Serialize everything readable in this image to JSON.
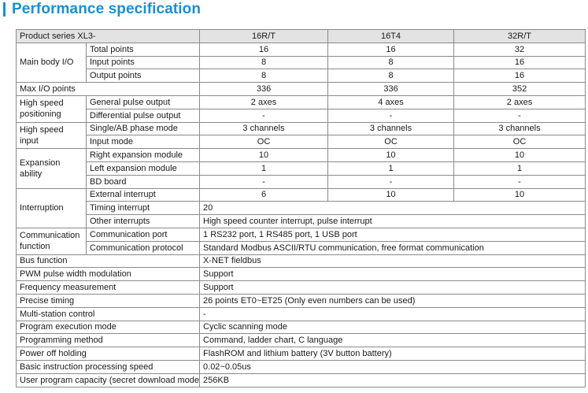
{
  "title": "Performance specification",
  "header": {
    "label": "Product series XL3-",
    "models": [
      "16R/T",
      "16T4",
      "32R/T"
    ]
  },
  "rows": {
    "main_io": {
      "group": "Main body I/O",
      "total": {
        "label": "Total points",
        "v": [
          "16",
          "16",
          "32"
        ]
      },
      "input": {
        "label": "Input points",
        "v": [
          "8",
          "8",
          "16"
        ]
      },
      "output": {
        "label": "Output points",
        "v": [
          "8",
          "8",
          "16"
        ]
      }
    },
    "max_io": {
      "label": "Max I/O points",
      "v": [
        "336",
        "336",
        "352"
      ]
    },
    "hs_pos": {
      "group": "High speed positioning",
      "general": {
        "label": "General pulse output",
        "v": [
          "2 axes",
          "4 axes",
          "2 axes"
        ]
      },
      "diff": {
        "label": "Differential pulse output",
        "v": [
          "-",
          "-",
          "-"
        ]
      }
    },
    "hs_input": {
      "group": "High speed input",
      "phase": {
        "label": "Single/AB phase mode",
        "v": [
          "3 channels",
          "3 channels",
          "3 channels"
        ]
      },
      "mode": {
        "label": "Input mode",
        "v": [
          "OC",
          "OC",
          "OC"
        ]
      }
    },
    "expansion": {
      "group": "Expansion ability",
      "right": {
        "label": "Right expansion module",
        "v": [
          "10",
          "10",
          "10"
        ]
      },
      "left": {
        "label": "Left expansion module",
        "v": [
          "1",
          "1",
          "1"
        ]
      },
      "bd": {
        "label": "BD board",
        "v": [
          "-",
          "-",
          "-"
        ]
      }
    },
    "interruption": {
      "group": "Interruption",
      "external": {
        "label": "External interrupt",
        "v": [
          "6",
          "10",
          "10"
        ]
      },
      "timing": {
        "label": "Timing interrupt",
        "value": "20"
      },
      "other": {
        "label": "Other interrupts",
        "value": "High speed counter interrupt, pulse interrupt"
      }
    },
    "comm": {
      "group": "Communication function",
      "port": {
        "label": "Communication port",
        "value": "1 RS232 port, 1 RS485 port, 1 USB port"
      },
      "protocol": {
        "label": "Communication protocol",
        "value": "Standard Modbus ASCII/RTU communication, free format communication"
      }
    },
    "bus": {
      "label": "Bus function",
      "value": "X-NET fieldbus"
    },
    "pwm": {
      "label": "PWM pulse width modulation",
      "value": "Support"
    },
    "freq": {
      "label": "Frequency measurement",
      "value": "Support"
    },
    "timing": {
      "label": "Precise timing",
      "value": "26 points ET0~ET25 (Only even numbers can be used)"
    },
    "multi": {
      "label": "Multi-station control",
      "value": "-"
    },
    "exec": {
      "label": "Program execution mode",
      "value": "Cyclic scanning mode"
    },
    "method": {
      "label": "Programming method",
      "value": "Command, ladder chart, C language"
    },
    "poweroff": {
      "label": "Power off holding",
      "value": "FlashROM and lithium battery (3V button battery)"
    },
    "speed": {
      "label": "Basic instruction processing speed",
      "value": "0.02~0.05us"
    },
    "capacity": {
      "label": "User program capacity (secret download mode)",
      "value": "256KB"
    }
  }
}
